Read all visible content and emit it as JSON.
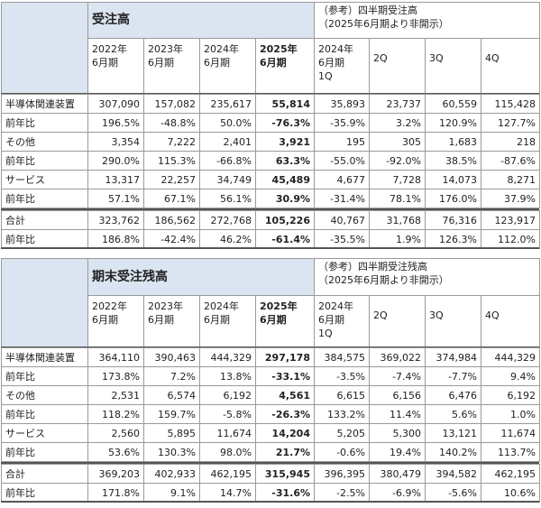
{
  "tables": [
    {
      "title": "受注高",
      "note": [
        "（参考）四半期受注高",
        "（2025年6月期より非開示）"
      ],
      "columns": [
        [
          "2022年",
          "6月期"
        ],
        [
          "2023年",
          "6月期"
        ],
        [
          "2024年",
          "6月期"
        ],
        [
          "2025年",
          "6月期"
        ],
        [
          "2024年",
          "6月期",
          "1Q"
        ],
        [
          "2Q"
        ],
        [
          "3Q"
        ],
        [
          "4Q"
        ]
      ],
      "rows": [
        [
          "半導体関連装置",
          "307,090",
          "157,082",
          "235,617",
          "55,814",
          "35,893",
          "23,737",
          "60,559",
          "115,428"
        ],
        [
          "前年比",
          "196.5%",
          "-48.8%",
          "50.0%",
          "-76.3%",
          "-35.9%",
          "3.2%",
          "120.9%",
          "127.7%"
        ],
        [
          "その他",
          "3,354",
          "7,222",
          "2,401",
          "3,921",
          "195",
          "305",
          "1,683",
          "218"
        ],
        [
          "前年比",
          "290.0%",
          "115.3%",
          "-66.8%",
          "63.3%",
          "-55.0%",
          "-92.0%",
          "38.5%",
          "-87.6%"
        ],
        [
          "サービス",
          "13,317",
          "22,257",
          "34,749",
          "45,489",
          "4,677",
          "7,728",
          "14,073",
          "8,271"
        ],
        [
          "前年比",
          "57.1%",
          "67.1%",
          "56.1%",
          "30.9%",
          "-31.4%",
          "78.1%",
          "176.0%",
          "37.9%"
        ],
        [
          "合計",
          "323,762",
          "186,562",
          "272,768",
          "105,226",
          "40,767",
          "31,768",
          "76,316",
          "123,917"
        ],
        [
          "前年比",
          "186.8%",
          "-42.4%",
          "46.2%",
          "-61.4%",
          "-35.5%",
          "1.9%",
          "126.3%",
          "112.0%"
        ]
      ]
    },
    {
      "title": "期末受注残高",
      "note": [
        "（参考）四半期受注残高",
        "（2025年6月期より非開示）"
      ],
      "columns": [
        [
          "2022年",
          "6月期"
        ],
        [
          "2023年",
          "6月期"
        ],
        [
          "2024年",
          "6月期"
        ],
        [
          "2025年",
          "6月期"
        ],
        [
          "2024年",
          "6月期",
          "1Q"
        ],
        [
          "2Q"
        ],
        [
          "3Q"
        ],
        [
          "4Q"
        ]
      ],
      "rows": [
        [
          "半導体関連装置",
          "364,110",
          "390,463",
          "444,329",
          "297,178",
          "384,575",
          "369,022",
          "374,984",
          "444,329"
        ],
        [
          "前年比",
          "173.8%",
          "7.2%",
          "13.8%",
          "-33.1%",
          "-3.5%",
          "-7.4%",
          "-7.7%",
          "9.4%"
        ],
        [
          "その他",
          "2,531",
          "6,574",
          "6,192",
          "4,561",
          "6,615",
          "6,156",
          "6,476",
          "6,192"
        ],
        [
          "前年比",
          "118.2%",
          "159.7%",
          "-5.8%",
          "-26.3%",
          "133.2%",
          "11.4%",
          "5.6%",
          "1.0%"
        ],
        [
          "サービス",
          "2,560",
          "5,895",
          "11,674",
          "14,204",
          "5,205",
          "5,300",
          "13,121",
          "11,674"
        ],
        [
          "前年比",
          "53.6%",
          "130.3%",
          "98.0%",
          "21.7%",
          "-0.6%",
          "19.4%",
          "140.2%",
          "113.7%"
        ],
        [
          "合計",
          "369,203",
          "402,933",
          "462,195",
          "315,945",
          "396,395",
          "380,479",
          "394,582",
          "462,195"
        ],
        [
          "前年比",
          "171.8%",
          "9.1%",
          "14.7%",
          "-31.6%",
          "-2.5%",
          "-6.9%",
          "-5.6%",
          "10.6%"
        ]
      ]
    }
  ]
}
